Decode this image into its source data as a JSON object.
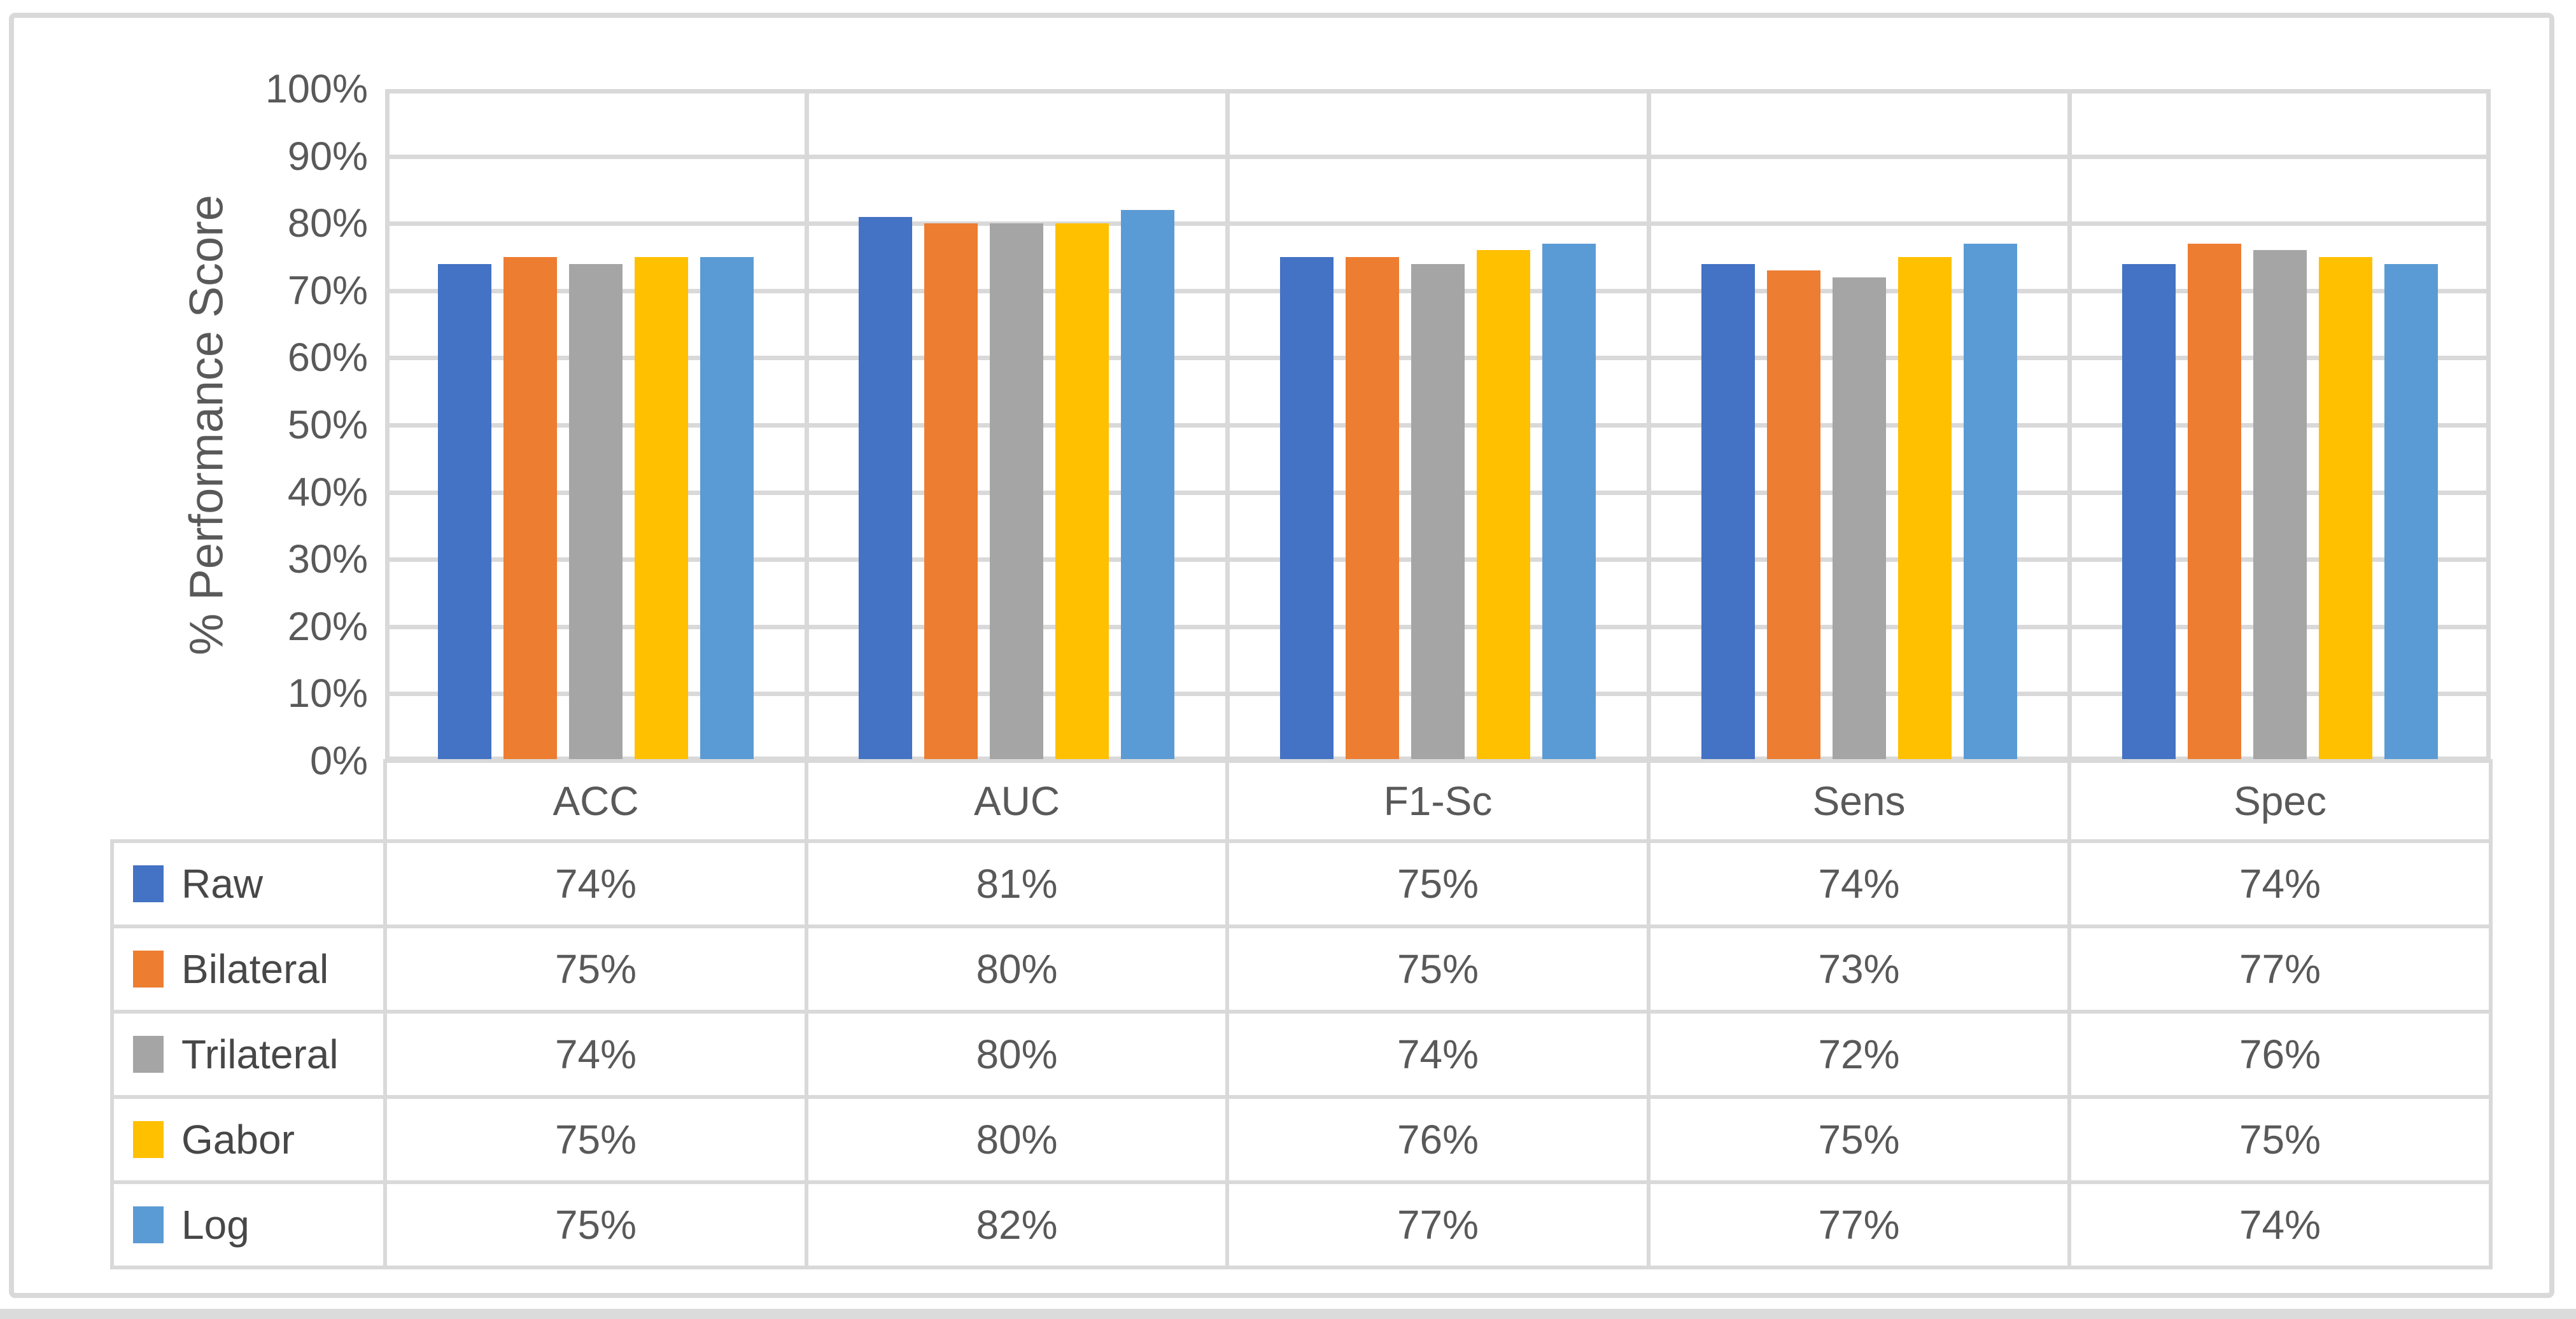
{
  "chart_data": {
    "type": "bar",
    "title": "",
    "xlabel": "",
    "ylabel": "% Performance Score",
    "categories": [
      "ACC",
      "AUC",
      "F1-Sc",
      "Sens",
      "Spec"
    ],
    "series": [
      {
        "name": "Raw",
        "color": "#4472C4",
        "values": [
          74,
          81,
          75,
          74,
          74
        ]
      },
      {
        "name": "Bilateral",
        "color": "#ED7D31",
        "values": [
          75,
          80,
          75,
          73,
          77
        ]
      },
      {
        "name": "Trilateral",
        "color": "#A5A5A5",
        "values": [
          74,
          80,
          74,
          72,
          76
        ]
      },
      {
        "name": "Gabor",
        "color": "#FFC000",
        "values": [
          75,
          80,
          76,
          75,
          75
        ]
      },
      {
        "name": "Log",
        "color": "#5B9BD5",
        "values": [
          75,
          82,
          77,
          77,
          74
        ]
      }
    ],
    "value_suffix": "%",
    "ylim": [
      0,
      100
    ],
    "ytick_labels": [
      "100%",
      "90%",
      "80%",
      "70%",
      "60%",
      "50%",
      "40%",
      "30%",
      "20%",
      "10%",
      "0%"
    ],
    "grid": true,
    "legend_position": "data-table-left-column",
    "colors": {
      "gridline": "#D9D9D9",
      "frame_border": "#D9D9D9",
      "axis_text": "#595959",
      "legend_text": "#474747",
      "background": "#FFFFFF"
    }
  }
}
